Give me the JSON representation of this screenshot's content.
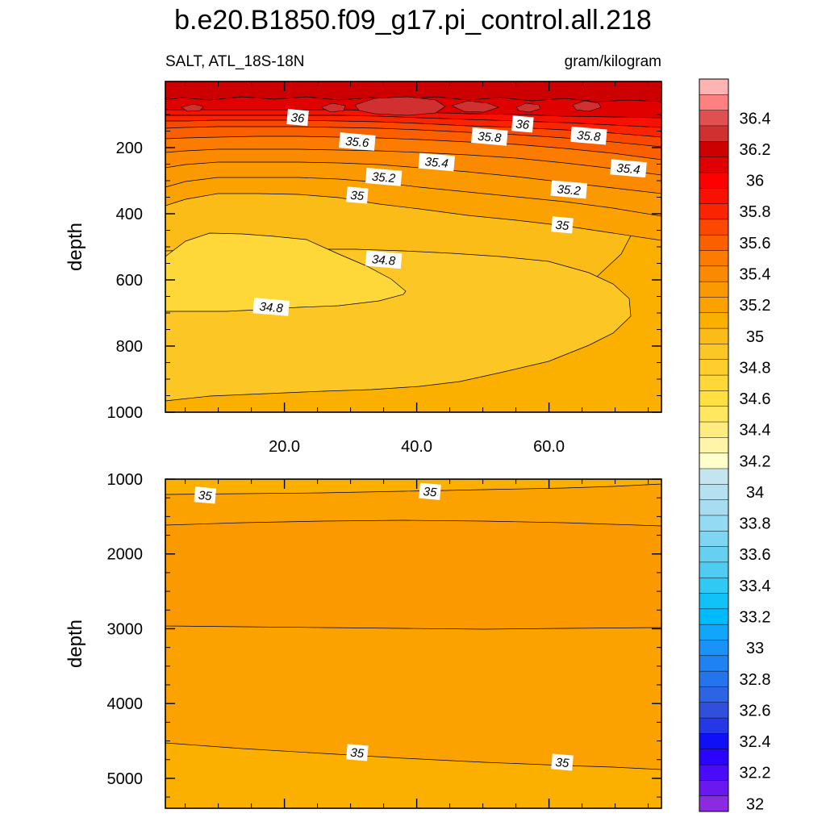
{
  "chart_data": {
    "type": "contour",
    "title": "b.e20.B1850.f09_g17.pi_control.all.218",
    "left_subtitle": "SALT, ATL_18S-18N",
    "right_subtitle": "gram/kilogram",
    "colorbar": {
      "levels": [
        32.0,
        32.1,
        32.2,
        32.3,
        32.4,
        32.5,
        32.6,
        32.7,
        32.8,
        32.9,
        33.0,
        33.1,
        33.2,
        33.3,
        33.4,
        33.5,
        33.6,
        33.7,
        33.8,
        33.9,
        34.0,
        34.1,
        34.2,
        34.3,
        34.4,
        34.5,
        34.6,
        34.7,
        34.8,
        34.9,
        35.0,
        35.1,
        35.2,
        35.3,
        35.4,
        35.5,
        35.6,
        35.7,
        35.8,
        35.9,
        36.0,
        36.1,
        36.2,
        36.3,
        36.4,
        36.5
      ],
      "labels": [
        "32",
        "32.2",
        "32.4",
        "32.6",
        "32.8",
        "33",
        "33.2",
        "33.4",
        "33.6",
        "33.8",
        "34",
        "34.2",
        "34.4",
        "34.6",
        "34.8",
        "35",
        "35.2",
        "35.4",
        "35.6",
        "35.8",
        "36",
        "36.2",
        "36.4"
      ],
      "colors": [
        "#8a2be2",
        "#6a18f0",
        "#4a0cf8",
        "#2a04ff",
        "#1010f8",
        "#2438e8",
        "#3050dc",
        "#2c64e4",
        "#2474ec",
        "#1e82f2",
        "#1a92f8",
        "#10a6fa",
        "#00bbff",
        "#10c2f8",
        "#30c8f4",
        "#50ccf2",
        "#66d0f0",
        "#7fd6f2",
        "#94daf2",
        "#a8dcf0",
        "#b4e0f0",
        "#c4e4f0",
        "#ffffcc",
        "#fff4a8",
        "#ffec80",
        "#ffe860",
        "#ffe040",
        "#fed838",
        "#fecf2c",
        "#fcc624",
        "#fcbc18",
        "#fbb000",
        "#fba200",
        "#fb9a00",
        "#fb8a00",
        "#fb7c00",
        "#fb6000",
        "#fb4800",
        "#fb2400",
        "#f81000",
        "#ff0000",
        "#e00000",
        "#cc0000",
        "#d03030",
        "#e05050",
        "#ff8080",
        "#ffb4b4"
      ]
    },
    "upper_panel": {
      "xlim": [
        2,
        77
      ],
      "ylim": [
        0,
        1000
      ],
      "xticks": [
        20,
        40,
        60
      ],
      "xtick_labels": [
        "20.0",
        "40.0",
        "60.0"
      ],
      "yticks": [
        200,
        400,
        600,
        800,
        1000
      ],
      "ytick_labels": [
        "200",
        "400",
        "600",
        "800",
        "1000"
      ],
      "ylabel": "depth",
      "contour_labels": [
        {
          "text": "36",
          "x": 22,
          "y": 110
        },
        {
          "text": "36",
          "x": 56,
          "y": 130
        },
        {
          "text": "35.8",
          "x": 51,
          "y": 168
        },
        {
          "text": "35.8",
          "x": 66,
          "y": 165
        },
        {
          "text": "35.6",
          "x": 31,
          "y": 183
        },
        {
          "text": "35.4",
          "x": 43,
          "y": 245
        },
        {
          "text": "35.4",
          "x": 72,
          "y": 264
        },
        {
          "text": "35.2",
          "x": 35,
          "y": 290
        },
        {
          "text": "35.2",
          "x": 63,
          "y": 328
        },
        {
          "text": "35",
          "x": 31,
          "y": 345
        },
        {
          "text": "35",
          "x": 62,
          "y": 435
        },
        {
          "text": "34.8",
          "x": 35,
          "y": 540
        },
        {
          "text": "34.8",
          "x": 18,
          "y": 683
        }
      ]
    },
    "lower_panel": {
      "xlim": [
        2,
        77
      ],
      "ylim": [
        1000,
        5400
      ],
      "yticks": [
        1000,
        2000,
        3000,
        4000,
        5000
      ],
      "ytick_labels": [
        "1000",
        "2000",
        "3000",
        "4000",
        "5000"
      ],
      "ylabel": "depth",
      "contour_labels": [
        {
          "text": "35",
          "x": 8,
          "y": 1220
        },
        {
          "text": "35",
          "x": 42,
          "y": 1170
        },
        {
          "text": "35",
          "x": 31,
          "y": 4660
        },
        {
          "text": "35",
          "x": 62,
          "y": 4790
        }
      ]
    }
  }
}
